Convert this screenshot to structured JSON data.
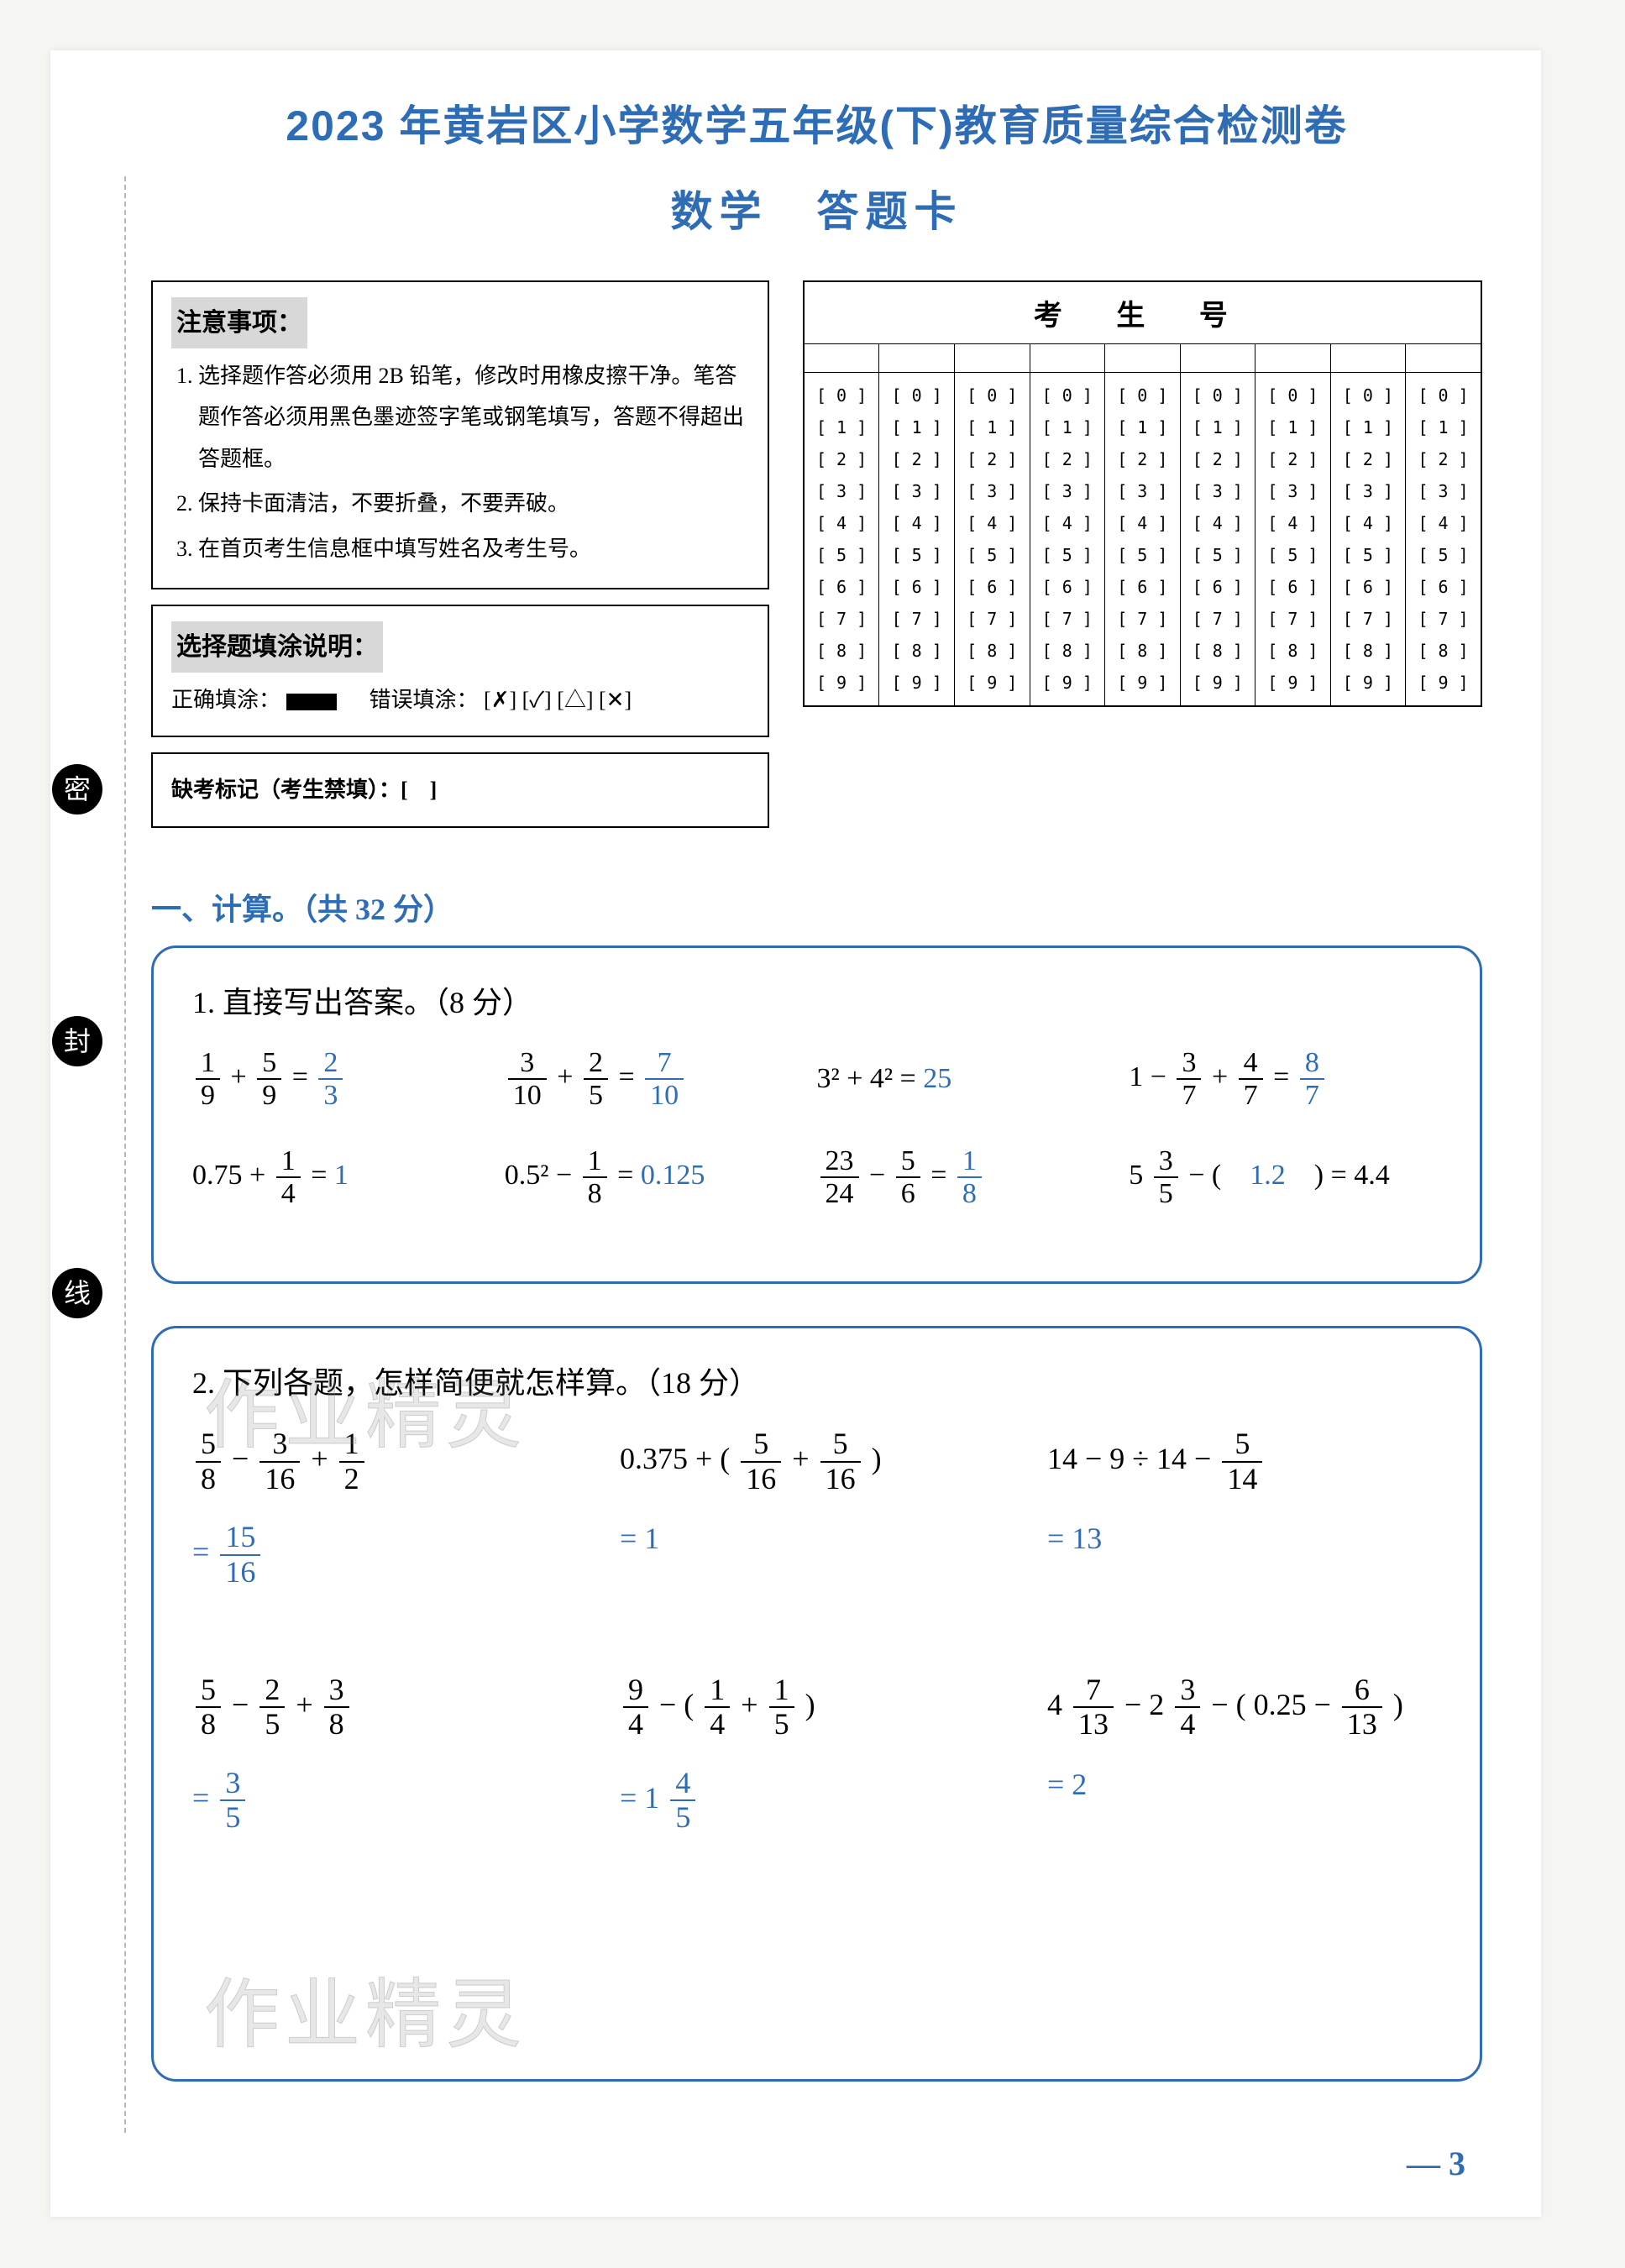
{
  "header": {
    "title": "2023 年黄岩区小学数学五年级(下)教育质量综合检测卷",
    "subtitle": "数学　答题卡"
  },
  "notice": {
    "heading": "注意事项：",
    "items": [
      "选择题作答必须用 2B 铅笔，修改时用橡皮擦干净。笔答题作答必须用黑色墨迹签字笔或钢笔填写，答题不得超出答题框。",
      "保持卡面清洁，不要折叠，不要弄破。",
      "在首页考生信息框中填写姓名及考生号。"
    ]
  },
  "fill_instruction": {
    "heading": "选择题填涂说明：",
    "correct_label": "正确填涂：",
    "wrong_label": "错误填涂：",
    "wrong_marks": "[✗] [✓] [△] [✕]"
  },
  "absent": {
    "label": "缺考标记（考生禁填）：[　]"
  },
  "id_grid": {
    "heading": "考 生 号",
    "cols": 9,
    "digits": [
      "0",
      "1",
      "2",
      "3",
      "4",
      "5",
      "6",
      "7",
      "8",
      "9"
    ]
  },
  "section1": {
    "heading": "一、计算。（共 32 分）",
    "q1": {
      "title": "1. 直接写出答案。（8 分）",
      "row1": [
        {
          "lhs_a": "1",
          "lhs_b": "9",
          "op": "+",
          "rhs_a": "5",
          "rhs_b": "9",
          "ans_a": "2",
          "ans_b": "3"
        },
        {
          "lhs_a": "3",
          "lhs_b": "10",
          "op": "+",
          "rhs_a": "2",
          "rhs_b": "5",
          "ans_a": "7",
          "ans_b": "10"
        },
        {
          "expr": "3² + 4² =",
          "ans": "25"
        },
        {
          "pre": "1 −",
          "lhs_a": "3",
          "lhs_b": "7",
          "op": "+",
          "rhs_a": "4",
          "rhs_b": "7",
          "ans_a": "8",
          "ans_b": "7"
        }
      ],
      "row2": [
        {
          "pre": "0.75 +",
          "lhs_a": "1",
          "lhs_b": "4",
          "eq": "=",
          "ans": "1"
        },
        {
          "pre": "0.5² −",
          "lhs_a": "1",
          "lhs_b": "8",
          "eq": "=",
          "ans": "0.125"
        },
        {
          "lhs_a": "23",
          "lhs_b": "24",
          "op": "−",
          "rhs_a": "5",
          "rhs_b": "6",
          "ans_a": "1",
          "ans_b": "8"
        },
        {
          "pre": "5",
          "mix_a": "3",
          "mix_b": "5",
          "mid": " − (　",
          "ans": "1.2",
          "post": "　) = 4.4"
        }
      ]
    },
    "q2": {
      "title": "2. 下列各题，怎样简便就怎样算。（18 分）",
      "items": [
        {
          "expr_html": "<span class='frac'><span class='n'>5</span><span class='d'>8</span></span> − <span class='frac'><span class='n'>3</span><span class='d'>16</span></span> + <span class='frac'><span class='n'>1</span><span class='d'>2</span></span>",
          "ans_html": "= <span class='frac ans'><span class='n'>15</span><span class='d'>16</span></span>"
        },
        {
          "expr_html": "0.375 + ( <span class='frac'><span class='n'>5</span><span class='d'>16</span></span> + <span class='frac'><span class='n'>5</span><span class='d'>16</span></span> )",
          "ans_html": "<span class='ans'>= 1</span>"
        },
        {
          "expr_html": "14 − 9 ÷ 14 − <span class='frac'><span class='n'>5</span><span class='d'>14</span></span>",
          "ans_html": "<span class='ans'>= 13</span>"
        },
        {
          "expr_html": "<span class='frac'><span class='n'>5</span><span class='d'>8</span></span> − <span class='frac'><span class='n'>2</span><span class='d'>5</span></span> + <span class='frac'><span class='n'>3</span><span class='d'>8</span></span>",
          "ans_html": "= <span class='frac ans'><span class='n'>3</span><span class='d'>5</span></span>"
        },
        {
          "expr_html": "<span class='frac'><span class='n'>9</span><span class='d'>4</span></span> − ( <span class='frac'><span class='n'>1</span><span class='d'>4</span></span> + <span class='frac'><span class='n'>1</span><span class='d'>5</span></span> )",
          "ans_html": "<span class='ans'>= 1 <span class='frac'><span class='n'>4</span><span class='d'>5</span></span></span>"
        },
        {
          "expr_html": "4 <span class='frac'><span class='n'>7</span><span class='d'>13</span></span> − 2 <span class='frac'><span class='n'>3</span><span class='d'>4</span></span> − ( 0.25 − <span class='frac'><span class='n'>6</span><span class='d'>13</span></span> )",
          "ans_html": "<span class='ans'>= 2</span>"
        }
      ]
    }
  },
  "margin_bubbles": [
    "密",
    "封",
    "线"
  ],
  "watermarks": [
    "作业精灵",
    "作业精灵"
  ],
  "page_number": "— 3"
}
